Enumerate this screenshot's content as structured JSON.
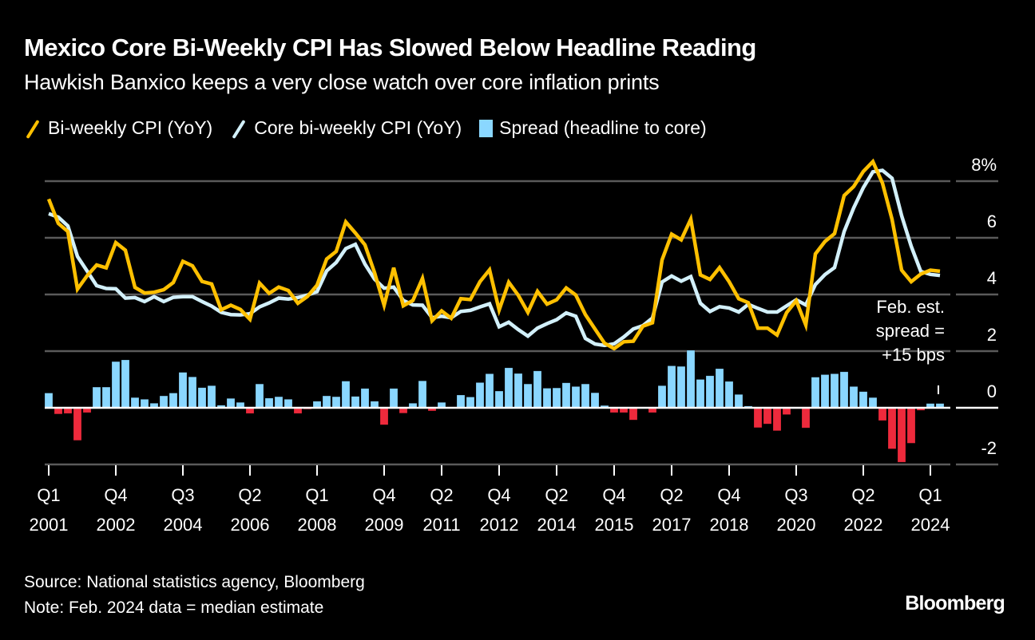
{
  "title": "Mexico Core Bi-Weekly CPI Has Slowed Below Headline Reading",
  "subtitle": "Hawkish Banxico keeps a very close watch over core inflation prints",
  "legend": [
    {
      "label": "Bi-weekly CPI (YoY)",
      "color": "#FFC000",
      "kind": "line"
    },
    {
      "label": "Core bi-weekly CPI (YoY)",
      "color": "#D2F0FA",
      "kind": "line"
    },
    {
      "label": "Spread (headline to core)",
      "color": "#8AD7FF",
      "kind": "bar"
    }
  ],
  "annotation": [
    "Feb. est.",
    "spread =",
    "+15 bps"
  ],
  "footer": {
    "source": "Source: National statistics agency, Bloomberg",
    "note": "Note: Feb. 2024 data = median estimate",
    "logo": "Bloomberg"
  },
  "chart_data": {
    "type": "line",
    "title": "Mexico Core Bi-Weekly CPI Has Slowed Below Headline Reading",
    "xlabel": "",
    "ylabel": "",
    "ylim": [
      -2,
      8
    ],
    "yticks": [
      {
        "value": 8,
        "label": "8%"
      },
      {
        "value": 6,
        "label": "6"
      },
      {
        "value": 4,
        "label": "4"
      },
      {
        "value": 2,
        "label": "2"
      },
      {
        "value": 0,
        "label": "0"
      },
      {
        "value": -2,
        "label": "-2"
      }
    ],
    "grid": true,
    "xticks": [
      {
        "index": 0,
        "q": "Q1",
        "year": "2001"
      },
      {
        "index": 7,
        "q": "Q4",
        "year": "2002"
      },
      {
        "index": 14,
        "q": "Q3",
        "year": "2004"
      },
      {
        "index": 21,
        "q": "Q2",
        "year": "2006"
      },
      {
        "index": 28,
        "q": "Q1",
        "year": "2008"
      },
      {
        "index": 35,
        "q": "Q4",
        "year": "2009"
      },
      {
        "index": 41,
        "q": "Q2",
        "year": "2011"
      },
      {
        "index": 47,
        "q": "Q4",
        "year": "2012"
      },
      {
        "index": 53,
        "q": "Q2",
        "year": "2014"
      },
      {
        "index": 59,
        "q": "Q4",
        "year": "2015"
      },
      {
        "index": 65,
        "q": "Q2",
        "year": "2017"
      },
      {
        "index": 71,
        "q": "Q4",
        "year": "2018"
      },
      {
        "index": 78,
        "q": "Q3",
        "year": "2020"
      },
      {
        "index": 85,
        "q": "Q2",
        "year": "2022"
      },
      {
        "index": 92,
        "q": "Q1",
        "year": "2024"
      }
    ],
    "x_period": "quarterly, Q1 2001 to Feb. 2024",
    "series": [
      {
        "name": "Bi-weekly CPI (YoY)",
        "type": "line",
        "color": "#FFC000",
        "values": [
          7.37,
          6.51,
          6.22,
          4.19,
          4.66,
          5.04,
          4.94,
          5.83,
          5.56,
          4.25,
          4.05,
          4.08,
          4.17,
          4.42,
          5.17,
          5.01,
          4.46,
          4.37,
          3.46,
          3.62,
          3.47,
          3.12,
          4.4,
          4.04,
          4.26,
          4.14,
          3.69,
          3.93,
          4.33,
          5.25,
          5.52,
          6.56,
          6.17,
          5.75,
          4.77,
          3.62,
          4.94,
          3.6,
          3.79,
          4.57,
          3.07,
          3.42,
          3.16,
          3.85,
          3.82,
          4.45,
          4.87,
          3.45,
          4.43,
          3.97,
          3.37,
          4.11,
          3.66,
          3.81,
          4.23,
          3.98,
          3.29,
          2.78,
          2.28,
          2.09,
          2.33,
          2.35,
          2.88,
          3.0,
          5.22,
          6.13,
          5.93,
          6.66,
          4.69,
          4.53,
          4.95,
          4.45,
          3.85,
          3.71,
          2.81,
          2.81,
          2.57,
          3.36,
          3.78,
          2.92,
          5.43,
          5.87,
          6.15,
          7.49,
          7.81,
          8.34,
          8.69,
          7.93,
          6.65,
          4.86,
          4.45,
          4.72,
          4.86,
          4.82
        ]
      },
      {
        "name": "Core bi-weekly CPI (YoY)",
        "type": "line",
        "color": "#D2F0FA",
        "values": [
          6.85,
          6.73,
          6.42,
          5.34,
          4.83,
          4.31,
          4.21,
          4.2,
          3.87,
          3.89,
          3.75,
          3.92,
          3.75,
          3.9,
          3.92,
          3.92,
          3.75,
          3.59,
          3.37,
          3.29,
          3.28,
          3.32,
          3.56,
          3.7,
          3.87,
          3.84,
          3.89,
          3.98,
          4.1,
          4.83,
          5.13,
          5.62,
          5.77,
          5.07,
          4.54,
          4.22,
          4.26,
          3.79,
          3.63,
          3.62,
          3.18,
          3.23,
          3.18,
          3.4,
          3.44,
          3.56,
          3.67,
          2.86,
          3.02,
          2.76,
          2.53,
          2.81,
          2.97,
          3.11,
          3.35,
          3.23,
          2.45,
          2.25,
          2.2,
          2.26,
          2.5,
          2.78,
          2.9,
          3.17,
          4.44,
          4.65,
          4.47,
          4.63,
          3.69,
          3.4,
          3.57,
          3.52,
          3.38,
          3.65,
          3.51,
          3.38,
          3.38,
          3.6,
          3.81,
          3.63,
          4.35,
          4.7,
          4.95,
          6.22,
          7.06,
          7.77,
          8.33,
          8.38,
          8.1,
          6.78,
          5.7,
          4.81,
          4.71,
          4.67
        ]
      },
      {
        "name": "Spread (headline to core)",
        "type": "bar",
        "color_pos": "#8AD7FF",
        "color_neg": "#EE2A3C",
        "values": [
          0.52,
          -0.22,
          -0.2,
          -1.15,
          -0.17,
          0.73,
          0.73,
          1.63,
          1.69,
          0.36,
          0.3,
          0.16,
          0.42,
          0.52,
          1.25,
          1.09,
          0.71,
          0.78,
          0.09,
          0.33,
          0.19,
          -0.2,
          0.84,
          0.34,
          0.39,
          0.3,
          -0.2,
          -0.05,
          0.23,
          0.42,
          0.39,
          0.94,
          0.4,
          0.68,
          0.23,
          -0.6,
          0.68,
          -0.19,
          0.16,
          0.95,
          -0.11,
          0.19,
          -0.02,
          0.45,
          0.38,
          0.89,
          1.2,
          0.59,
          1.41,
          1.21,
          0.84,
          1.3,
          0.69,
          0.7,
          0.88,
          0.75,
          0.84,
          0.53,
          0.08,
          -0.17,
          -0.17,
          -0.43,
          -0.02,
          -0.17,
          0.78,
          1.48,
          1.46,
          2.03,
          1.0,
          1.13,
          1.38,
          0.93,
          0.47,
          0.06,
          -0.7,
          -0.57,
          -0.81,
          -0.24,
          -0.03,
          -0.71,
          1.08,
          1.17,
          1.2,
          1.27,
          0.75,
          0.57,
          0.36,
          -0.45,
          -1.45,
          -1.92,
          -1.25,
          -0.09,
          0.15,
          0.15
        ]
      }
    ],
    "legend_position": "top-left"
  }
}
